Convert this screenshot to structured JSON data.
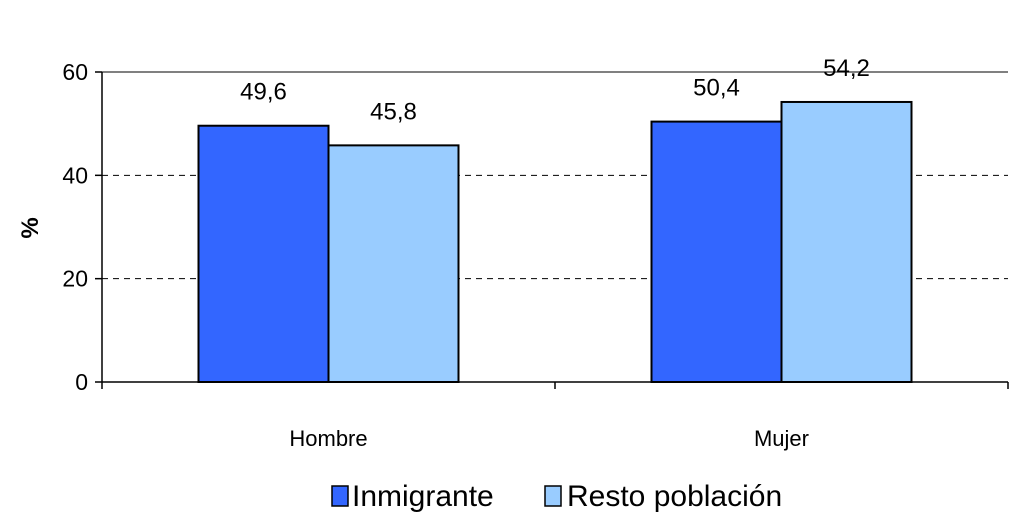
{
  "chart_data": {
    "type": "bar",
    "categories": [
      "Hombre",
      "Mujer"
    ],
    "series": [
      {
        "name": "Inmigrante",
        "values": [
          49.6,
          50.4
        ],
        "labels": [
          "49,6",
          "50,4"
        ],
        "color": "#3366FF"
      },
      {
        "name": "Resto población",
        "values": [
          45.8,
          54.2
        ],
        "labels": [
          "45,8",
          "54,2"
        ],
        "color": "#99CCFF"
      }
    ],
    "ylabel": "%",
    "xlabel": "",
    "title": "",
    "ylim": [
      0,
      60
    ],
    "yticks": [
      0,
      20,
      40,
      60
    ],
    "ytick_labels": [
      "0",
      "20",
      "40",
      "60"
    ],
    "grid": "horizontal dashed",
    "legend_position": "bottom"
  }
}
